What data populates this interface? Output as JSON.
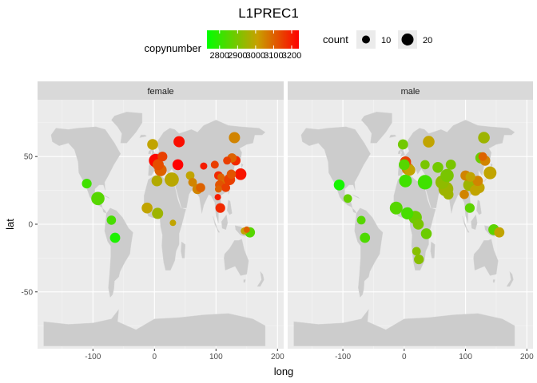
{
  "chart_data": {
    "type": "scatter",
    "title": "L1PREC1",
    "xlabel": "long",
    "ylabel": "lat",
    "facets": [
      "female",
      "male"
    ],
    "xlim": [
      -190,
      210
    ],
    "ylim": [
      -92,
      92
    ],
    "x_ticks": [
      -100,
      0,
      100,
      200
    ],
    "y_ticks": [
      -50,
      0,
      50
    ],
    "grid": true,
    "legend_position": "top",
    "color_legend": {
      "title": "copynumber",
      "low": 2730,
      "high": 3240,
      "ticks": [
        2800,
        2900,
        3000,
        3100,
        3200
      ],
      "colors": [
        "#00ff00",
        "#c8a000",
        "#ff0000"
      ]
    },
    "size_legend": {
      "title": "count",
      "entries": [
        10,
        20
      ]
    },
    "points": {
      "female": [
        {
          "x": -110,
          "y": 30,
          "count": 7,
          "copynumber": 2820
        },
        {
          "x": -92,
          "y": 19,
          "count": 15,
          "copynumber": 2850
        },
        {
          "x": -70,
          "y": 3,
          "count": 6,
          "copynumber": 2830
        },
        {
          "x": -64,
          "y": -10,
          "count": 8,
          "copynumber": 2770
        },
        {
          "x": -3,
          "y": 59,
          "count": 9,
          "copynumber": 3000
        },
        {
          "x": 2,
          "y": 47,
          "count": 16,
          "copynumber": 3230
        },
        {
          "x": 6,
          "y": 44,
          "count": 10,
          "copynumber": 3130
        },
        {
          "x": 10,
          "y": 40,
          "count": 12,
          "copynumber": 3100
        },
        {
          "x": 13,
          "y": 50,
          "count": 7,
          "copynumber": 3150
        },
        {
          "x": 40,
          "y": 61,
          "count": 10,
          "copynumber": 3220
        },
        {
          "x": 38,
          "y": 44,
          "count": 9,
          "copynumber": 3240
        },
        {
          "x": 28,
          "y": 33,
          "count": 18,
          "copynumber": 2990
        },
        {
          "x": 4,
          "y": 32,
          "count": 9,
          "copynumber": 2980
        },
        {
          "x": -12,
          "y": 12,
          "count": 9,
          "copynumber": 3000
        },
        {
          "x": 5,
          "y": 8,
          "count": 10,
          "copynumber": 2950
        },
        {
          "x": 30,
          "y": 1,
          "count": 2,
          "copynumber": 3000
        },
        {
          "x": 58,
          "y": 36,
          "count": 5,
          "copynumber": 3000
        },
        {
          "x": 62,
          "y": 31,
          "count": 5,
          "copynumber": 3050
        },
        {
          "x": 70,
          "y": 26,
          "count": 8,
          "copynumber": 3050
        },
        {
          "x": 75,
          "y": 27,
          "count": 6,
          "copynumber": 3100
        },
        {
          "x": 80,
          "y": 43,
          "count": 3,
          "copynumber": 3200
        },
        {
          "x": 98,
          "y": 44,
          "count": 4,
          "copynumber": 3150
        },
        {
          "x": 104,
          "y": 36,
          "count": 5,
          "copynumber": 3180
        },
        {
          "x": 104,
          "y": 26,
          "count": 3,
          "copynumber": 3100
        },
        {
          "x": 103,
          "y": 20,
          "count": 2,
          "copynumber": 3200
        },
        {
          "x": 106,
          "y": 29,
          "count": 6,
          "copynumber": 3120
        },
        {
          "x": 108,
          "y": 35,
          "count": 3,
          "copynumber": 3100
        },
        {
          "x": 112,
          "y": 30,
          "count": 13,
          "copynumber": 3080
        },
        {
          "x": 116,
          "y": 27,
          "count": 5,
          "copynumber": 3150
        },
        {
          "x": 118,
          "y": 47,
          "count": 4,
          "copynumber": 3150
        },
        {
          "x": 122,
          "y": 33,
          "count": 10,
          "copynumber": 3150
        },
        {
          "x": 125,
          "y": 37,
          "count": 6,
          "copynumber": 3120
        },
        {
          "x": 126,
          "y": 49,
          "count": 6,
          "copynumber": 3100
        },
        {
          "x": 130,
          "y": 64,
          "count": 10,
          "copynumber": 3050
        },
        {
          "x": 132,
          "y": 47,
          "count": 7,
          "copynumber": 3180
        },
        {
          "x": 140,
          "y": 37,
          "count": 11,
          "copynumber": 3210
        },
        {
          "x": 107,
          "y": 12,
          "count": 7,
          "copynumber": 3180
        },
        {
          "x": 146,
          "y": -5,
          "count": 3,
          "copynumber": 3000
        },
        {
          "x": 155,
          "y": -6,
          "count": 8,
          "copynumber": 2850
        },
        {
          "x": 150,
          "y": -4,
          "count": 2,
          "copynumber": 3100
        }
      ],
      "male": [
        {
          "x": -106,
          "y": 29,
          "count": 9,
          "copynumber": 2760
        },
        {
          "x": -92,
          "y": 19,
          "count": 5,
          "copynumber": 2870
        },
        {
          "x": -70,
          "y": 3,
          "count": 5,
          "copynumber": 2850
        },
        {
          "x": -64,
          "y": -10,
          "count": 8,
          "copynumber": 2840
        },
        {
          "x": -13,
          "y": 12,
          "count": 14,
          "copynumber": 2850
        },
        {
          "x": -2,
          "y": 59,
          "count": 8,
          "copynumber": 2890
        },
        {
          "x": 0,
          "y": 44,
          "count": 9,
          "copynumber": 2850
        },
        {
          "x": 2,
          "y": 46,
          "count": 10,
          "copynumber": 3150
        },
        {
          "x": 6,
          "y": 41,
          "count": 12,
          "copynumber": 3050
        },
        {
          "x": 9,
          "y": 40,
          "count": 10,
          "copynumber": 3000
        },
        {
          "x": 2,
          "y": 32,
          "count": 14,
          "copynumber": 2820
        },
        {
          "x": 5,
          "y": 8,
          "count": 12,
          "copynumber": 2830
        },
        {
          "x": 18,
          "y": 5,
          "count": 15,
          "copynumber": 2880
        },
        {
          "x": 23,
          "y": 0,
          "count": 9,
          "copynumber": 2900
        },
        {
          "x": 36,
          "y": -7,
          "count": 9,
          "copynumber": 2880
        },
        {
          "x": 34,
          "y": 31,
          "count": 19,
          "copynumber": 2820
        },
        {
          "x": 34,
          "y": 44,
          "count": 6,
          "copynumber": 2900
        },
        {
          "x": 40,
          "y": 61,
          "count": 11,
          "copynumber": 3000
        },
        {
          "x": 20,
          "y": -20,
          "count": 5,
          "copynumber": 2920
        },
        {
          "x": 24,
          "y": -26,
          "count": 7,
          "copynumber": 2920
        },
        {
          "x": 55,
          "y": 42,
          "count": 9,
          "copynumber": 2890
        },
        {
          "x": 62,
          "y": 31,
          "count": 16,
          "copynumber": 2930
        },
        {
          "x": 68,
          "y": 26,
          "count": 20,
          "copynumber": 2950
        },
        {
          "x": 70,
          "y": 36,
          "count": 15,
          "copynumber": 2900
        },
        {
          "x": 76,
          "y": 44,
          "count": 8,
          "copynumber": 2900
        },
        {
          "x": 72,
          "y": 22,
          "count": 8,
          "copynumber": 2950
        },
        {
          "x": 100,
          "y": 36,
          "count": 8,
          "copynumber": 3050
        },
        {
          "x": 98,
          "y": 22,
          "count": 6,
          "copynumber": 3050
        },
        {
          "x": 106,
          "y": 29,
          "count": 12,
          "copynumber": 2950
        },
        {
          "x": 108,
          "y": 35,
          "count": 7,
          "copynumber": 3000
        },
        {
          "x": 116,
          "y": 25,
          "count": 9,
          "copynumber": 3000
        },
        {
          "x": 120,
          "y": 32,
          "count": 8,
          "copynumber": 3050
        },
        {
          "x": 122,
          "y": 27,
          "count": 10,
          "copynumber": 3000
        },
        {
          "x": 125,
          "y": 49,
          "count": 10,
          "copynumber": 2880
        },
        {
          "x": 130,
          "y": 64,
          "count": 11,
          "copynumber": 2950
        },
        {
          "x": 132,
          "y": 47,
          "count": 8,
          "copynumber": 3050
        },
        {
          "x": 128,
          "y": 50,
          "count": 5,
          "copynumber": 3100
        },
        {
          "x": 140,
          "y": 38,
          "count": 14,
          "copynumber": 3000
        },
        {
          "x": 107,
          "y": 12,
          "count": 7,
          "copynumber": 2860
        },
        {
          "x": 146,
          "y": -4,
          "count": 9,
          "copynumber": 2860
        },
        {
          "x": 155,
          "y": -6,
          "count": 8,
          "copynumber": 3000
        }
      ]
    }
  }
}
